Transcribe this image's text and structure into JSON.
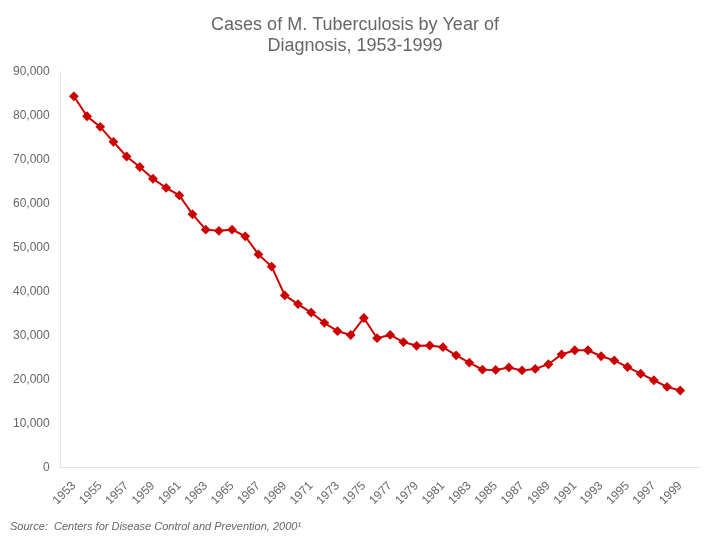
{
  "chart_data": {
    "type": "line",
    "title": "Cases of M. Tuberculosis by Year of\nDiagnosis, 1953-1999",
    "annotations": [
      "Source:  Centers for Disease Control and Prevention, 2000¹"
    ],
    "x": [
      1953,
      1954,
      1955,
      1956,
      1957,
      1958,
      1959,
      1960,
      1961,
      1962,
      1963,
      1964,
      1965,
      1966,
      1967,
      1968,
      1969,
      1970,
      1971,
      1972,
      1973,
      1974,
      1975,
      1976,
      1977,
      1978,
      1979,
      1980,
      1981,
      1982,
      1983,
      1984,
      1985,
      1986,
      1987,
      1988,
      1989,
      1990,
      1991,
      1992,
      1993,
      1994,
      1995,
      1996,
      1997,
      1998,
      1999
    ],
    "series": [
      {
        "color": "#cc0000",
        "marker": "diamond",
        "values": [
          84304,
          79775,
          77368,
          73977,
          70640,
          68249,
          65589,
          63534,
          61816,
          57535,
          54042,
          53769,
          54042,
          52530,
          48416,
          45647,
          39120,
          37137,
          35217,
          32882,
          30998,
          30122,
          33989,
          29399,
          30145,
          28521,
          27669,
          27749,
          27373,
          25520,
          23846,
          22255,
          22201,
          22768,
          22094,
          22436,
          23495,
          25701,
          26673,
          26673,
          25313,
          24361,
          22860,
          21337,
          19855,
          18361,
          17531
        ]
      }
    ],
    "xlim": [
      1952,
      2000.5
    ],
    "xticks": [
      1953,
      1955,
      1957,
      1959,
      1961,
      1963,
      1965,
      1967,
      1969,
      1971,
      1973,
      1975,
      1977,
      1979,
      1981,
      1983,
      1985,
      1987,
      1989,
      1991,
      1993,
      1995,
      1997,
      1999
    ],
    "ylim": [
      0,
      90000
    ],
    "yticks": [
      0,
      {
        "value": 10000,
        "label": "10,000"
      },
      {
        "value": 20000,
        "label": "20,000"
      },
      {
        "value": 30000,
        "label": "30,000"
      },
      {
        "value": 40000,
        "label": "40,000"
      },
      {
        "value": 50000,
        "label": "50,000"
      },
      {
        "value": 60000,
        "label": "60,000"
      },
      {
        "value": 70000,
        "label": "70,000"
      },
      {
        "value": 80000,
        "label": "80,000"
      },
      {
        "value": 90000,
        "label": "90,000"
      }
    ],
    "grid": false
  }
}
